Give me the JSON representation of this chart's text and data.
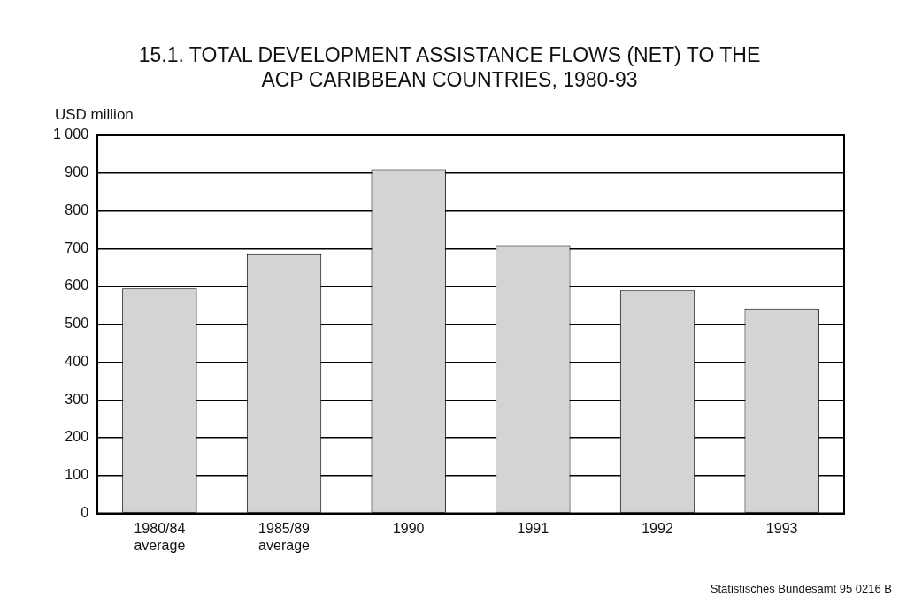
{
  "chart_data": {
    "type": "bar",
    "title": "15.1. TOTAL DEVELOPMENT ASSISTANCE FLOWS (NET) TO THE\nACP CARIBBEAN COUNTRIES, 1980-93",
    "ylabel": "USD million",
    "categories": [
      "1980/84\naverage",
      "1985/89\naverage",
      "1990",
      "1991",
      "1992",
      "1993"
    ],
    "values": [
      595,
      687,
      910,
      709,
      590,
      542
    ],
    "color": "#d4d4d4",
    "ylim": [
      0,
      1000
    ],
    "yticks": [
      0,
      100,
      200,
      300,
      400,
      500,
      600,
      700,
      800,
      900,
      {
        "value": 1000,
        "label": "1 000"
      }
    ],
    "grid": "y",
    "legend": false,
    "annotations": [
      "Statistisches Bundesamt 95 0216 B"
    ]
  }
}
